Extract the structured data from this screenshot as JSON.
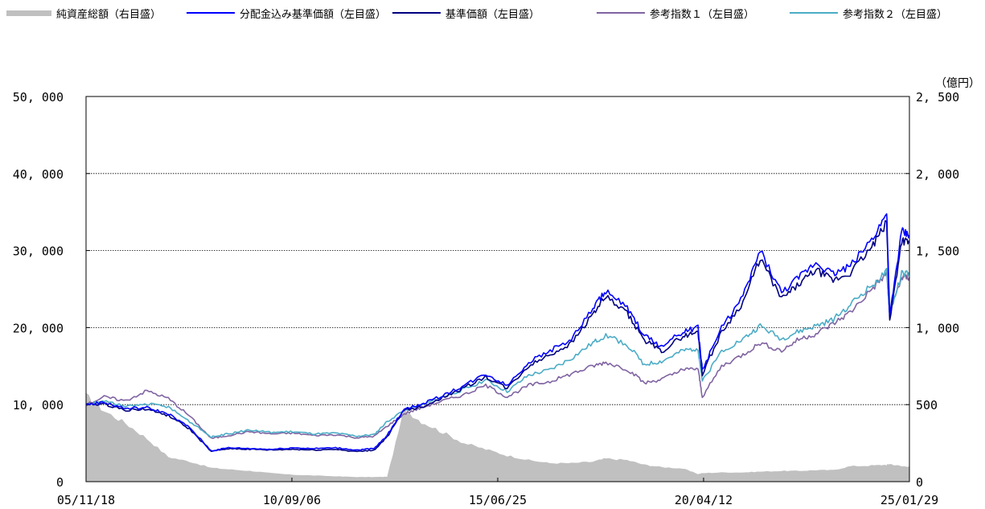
{
  "legend": [
    {
      "label": "純資産総額（右目盛）",
      "color": "#c0c0c0",
      "kind": "area"
    },
    {
      "label": "分配金込み基準価額（左目盛）",
      "color": "#0000ff",
      "kind": "line"
    },
    {
      "label": "基準価額（左目盛）",
      "color": "#000080",
      "kind": "line"
    },
    {
      "label": "参考指数１（左目盛）",
      "color": "#8064a2",
      "kind": "line"
    },
    {
      "label": "参考指数２（左目盛）",
      "color": "#4bacc6",
      "kind": "line"
    }
  ],
  "right_unit": "（億円）",
  "chart_data": {
    "type": "line",
    "title": "",
    "x_tick_labels": [
      "05/11/18",
      "10/09/06",
      "15/06/25",
      "20/04/12",
      "25/01/29"
    ],
    "x_range": [
      "05/11/18",
      "25/01/29"
    ],
    "y_left": {
      "range": [
        0,
        50000
      ],
      "ticks": [
        "0",
        "10, 000",
        "20, 000",
        "30, 000",
        "40, 000",
        "50, 000"
      ]
    },
    "y_right": {
      "range": [
        0,
        2500
      ],
      "ticks": [
        "0",
        "500",
        "1, 000",
        "1, 500",
        "2, 000",
        "2, 500"
      ]
    },
    "grid": "horizontal dotted",
    "legend_position": "top",
    "x": [
      2005.88,
      2006.3,
      2006.8,
      2007.3,
      2007.8,
      2008.3,
      2008.8,
      2009.2,
      2009.7,
      2010.2,
      2010.7,
      2011.2,
      2011.7,
      2012.2,
      2012.6,
      2012.9,
      2013.3,
      2013.7,
      2014.2,
      2014.7,
      2015.2,
      2015.7,
      2016.2,
      2016.7,
      2017.2,
      2017.7,
      2018.0,
      2018.5,
      2018.9,
      2019.3,
      2019.8,
      2020.15,
      2020.25,
      2020.7,
      2021.2,
      2021.6,
      2022.1,
      2022.5,
      2022.9,
      2023.3,
      2023.7,
      2024.2,
      2024.55,
      2024.62,
      2024.9,
      2025.08
    ],
    "series": [
      {
        "name": "純資産総額（右目盛）",
        "axis": "right",
        "color": "#c0c0c0",
        "type": "area",
        "values": [
          560,
          460,
          380,
          280,
          160,
          130,
          90,
          80,
          70,
          55,
          45,
          40,
          35,
          30,
          30,
          32,
          470,
          390,
          320,
          250,
          210,
          170,
          140,
          120,
          120,
          130,
          150,
          140,
          110,
          95,
          85,
          50,
          55,
          60,
          60,
          65,
          70,
          70,
          75,
          75,
          100,
          105,
          110,
          115,
          100,
          100
        ]
      },
      {
        "name": "分配金込み基準価額（左目盛）",
        "axis": "left",
        "color": "#0000ff",
        "type": "line",
        "values": [
          10000,
          10300,
          9500,
          9600,
          8800,
          7000,
          4000,
          4400,
          4300,
          4200,
          4400,
          4300,
          4400,
          4100,
          4300,
          6000,
          9500,
          10000,
          11200,
          12500,
          14000,
          12500,
          15500,
          17000,
          18500,
          22500,
          24800,
          22500,
          19000,
          17500,
          19500,
          20000,
          14500,
          20000,
          24000,
          30000,
          24500,
          26500,
          28500,
          27000,
          28000,
          31500,
          34800,
          21500,
          32500,
          32000
        ]
      },
      {
        "name": "基準価額（左目盛）",
        "axis": "left",
        "color": "#000080",
        "type": "line",
        "values": [
          10000,
          10100,
          9300,
          9400,
          8600,
          6800,
          3900,
          4300,
          4200,
          4100,
          4200,
          4100,
          4200,
          3900,
          4100,
          5800,
          9300,
          9700,
          10900,
          12200,
          13600,
          12100,
          15000,
          16500,
          18000,
          21800,
          24000,
          21800,
          18400,
          16900,
          18900,
          19400,
          14000,
          19400,
          23300,
          29000,
          23700,
          25600,
          27500,
          26100,
          27100,
          30400,
          33600,
          20800,
          31400,
          31000
        ]
      },
      {
        "name": "参考指数１（左目盛）",
        "axis": "left",
        "color": "#8064a2",
        "type": "line",
        "values": [
          10000,
          11000,
          10500,
          11800,
          10800,
          8500,
          5600,
          6000,
          6500,
          6200,
          6300,
          6000,
          6100,
          5700,
          5900,
          7200,
          8800,
          9600,
          10500,
          11300,
          12500,
          11000,
          12500,
          13000,
          14000,
          15000,
          15500,
          14600,
          12800,
          13300,
          14500,
          14700,
          11000,
          15000,
          16500,
          18000,
          17000,
          18500,
          19200,
          20500,
          22000,
          25000,
          27000,
          22000,
          26500,
          26500
        ]
      },
      {
        "name": "参考指数２（左目盛）",
        "axis": "left",
        "color": "#4bacc6",
        "type": "line",
        "values": [
          10000,
          10500,
          9700,
          10100,
          9700,
          7800,
          5800,
          6200,
          6700,
          6400,
          6500,
          6200,
          6300,
          5900,
          6100,
          7800,
          9300,
          9900,
          11000,
          12000,
          13200,
          11700,
          13800,
          14500,
          16000,
          18000,
          19000,
          17800,
          15200,
          15600,
          17000,
          17300,
          13000,
          17000,
          18500,
          20200,
          18500,
          19500,
          20200,
          21000,
          23000,
          25500,
          27200,
          21800,
          27000,
          27000
        ]
      }
    ]
  }
}
